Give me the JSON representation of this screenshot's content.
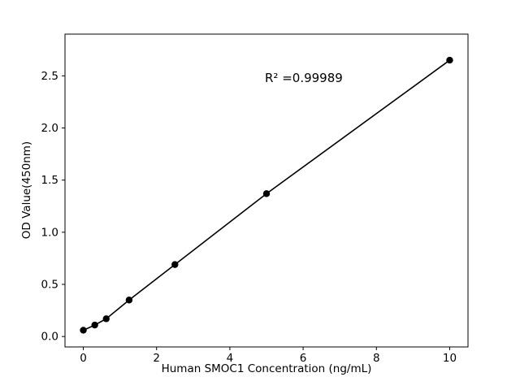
{
  "figure": {
    "background": "#ffffff"
  },
  "chart_data": {
    "type": "scatter",
    "title": "",
    "xlabel": "Human SMOC1 Concentration (ng/mL)",
    "ylabel": "OD Value(450nm)",
    "annotation": "R² =0.99989",
    "x": [
      0,
      0.313,
      0.625,
      1.25,
      2.5,
      5,
      10
    ],
    "y": [
      0.06,
      0.11,
      0.17,
      0.35,
      0.69,
      1.37,
      2.65
    ],
    "xticks": [
      0,
      2,
      4,
      6,
      8,
      10
    ],
    "xtick_labels": [
      "0",
      "2",
      "4",
      "6",
      "8",
      "10"
    ],
    "yticks": [
      0,
      0.5,
      1,
      1.5,
      2,
      2.5
    ],
    "ytick_labels": [
      "0.0",
      "0.5",
      "1.0",
      "1.5",
      "2.0",
      "2.5"
    ],
    "xlim": [
      -0.5,
      10.5
    ],
    "ylim": [
      -0.1,
      2.9
    ],
    "grid": false,
    "legend": "none",
    "fit_line": true,
    "marker": "circle",
    "marker_color": "#000000",
    "line_color": "#000000",
    "axis_color": "#000000"
  }
}
